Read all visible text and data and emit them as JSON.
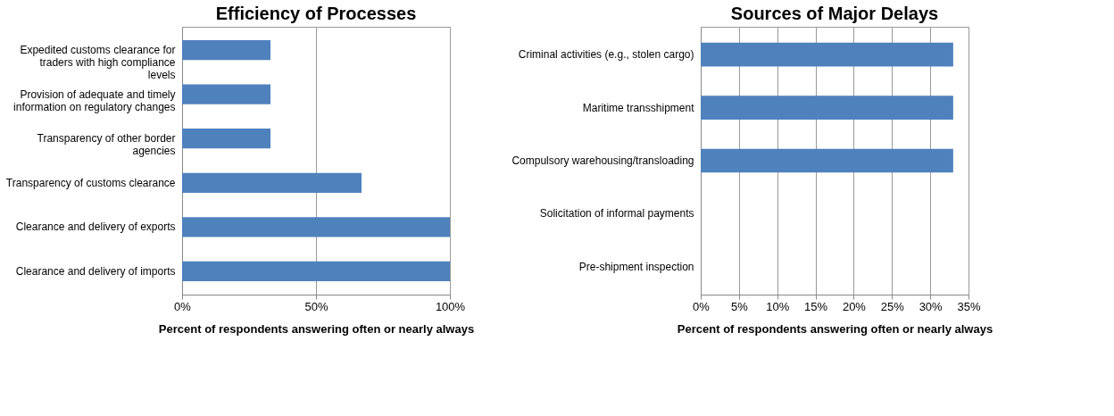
{
  "chart_data": [
    {
      "type": "bar",
      "orientation": "horizontal",
      "title": "Efficiency of Processes",
      "xlabel": "Percent of respondents answering often or nearly always",
      "categories": [
        "Expedited customs clearance for traders with high compliance levels",
        "Provision of adequate and timely information on regulatory changes",
        "Transparency of other border agencies",
        "Transparency of customs clearance",
        "Clearance and delivery of exports",
        "Clearance and delivery of imports"
      ],
      "series": [
        {
          "color": "#4f81bd",
          "values": [
            33,
            33,
            33,
            67,
            100,
            100
          ]
        }
      ],
      "xlim": [
        0,
        100
      ],
      "xticks": [
        {
          "value": 0,
          "label": "0%"
        },
        {
          "value": 50,
          "label": "50%"
        },
        {
          "value": 100,
          "label": "100%"
        }
      ],
      "grid": "x",
      "legend": false
    },
    {
      "type": "bar",
      "orientation": "horizontal",
      "title": "Sources of Major Delays",
      "xlabel": "Percent of respondents answering often or nearly always",
      "categories": [
        "Criminal activities (e.g., stolen cargo)",
        "Maritime transshipment",
        "Compulsory warehousing/transloading",
        "Solicitation of informal payments",
        "Pre-shipment inspection"
      ],
      "series": [
        {
          "color": "#4f81bd",
          "values": [
            33,
            33,
            33,
            0,
            0
          ]
        }
      ],
      "xlim": [
        0,
        35
      ],
      "xticks": [
        {
          "value": 0,
          "label": "0%"
        },
        {
          "value": 5,
          "label": "5%"
        },
        {
          "value": 10,
          "label": "10%"
        },
        {
          "value": 15,
          "label": "15%"
        },
        {
          "value": 20,
          "label": "20%"
        },
        {
          "value": 25,
          "label": "25%"
        },
        {
          "value": 30,
          "label": "30%"
        },
        {
          "value": 35,
          "label": "35%"
        }
      ],
      "grid": "x",
      "legend": false
    }
  ]
}
